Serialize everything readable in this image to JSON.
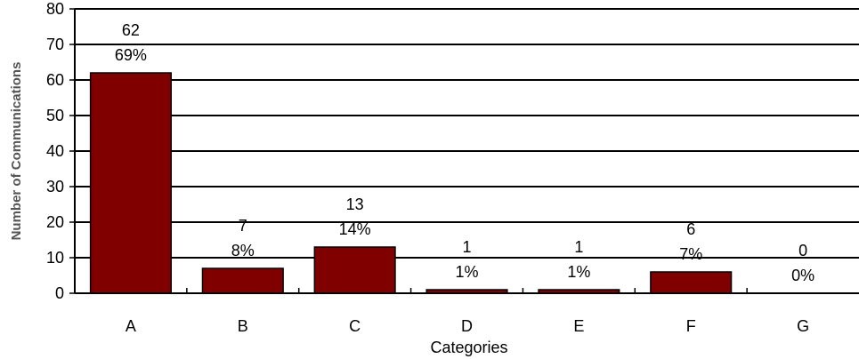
{
  "chart_data": {
    "type": "bar",
    "title": "",
    "xlabel": "Categories",
    "ylabel": "Number of Communications",
    "categories": [
      "A",
      "B",
      "C",
      "D",
      "E",
      "F",
      "G"
    ],
    "values": [
      62,
      7,
      13,
      1,
      1,
      6,
      0
    ],
    "percent_labels": [
      "69%",
      "8%",
      "14%",
      "1%",
      "1%",
      "7%",
      "0%"
    ],
    "ylim": [
      0,
      80
    ],
    "yticks": [
      0,
      10,
      20,
      30,
      40,
      50,
      60,
      70,
      80
    ],
    "grid": true,
    "legend": "none",
    "bar_color": "#800000",
    "bar_edge_color": "#000000",
    "grid_color": "#000000"
  }
}
